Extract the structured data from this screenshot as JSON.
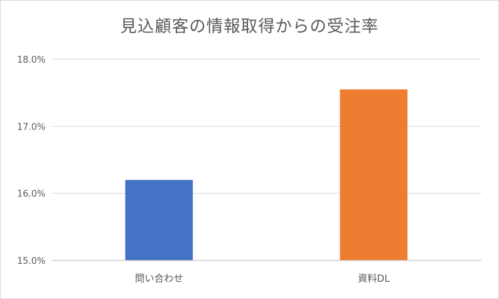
{
  "chart_data": {
    "type": "bar",
    "title": "見込顧客の情報取得からの受注率",
    "xlabel": "",
    "ylabel": "",
    "categories": [
      "問い合わせ",
      "資料DL"
    ],
    "values": [
      16.2,
      17.55
    ],
    "value_format": "percent_1dp",
    "ylim": [
      15.0,
      18.0
    ],
    "yticks": [
      "15.0%",
      "16.0%",
      "17.0%",
      "18.0%"
    ],
    "grid": true,
    "legend": "none",
    "colors": [
      "#4472c4",
      "#ed7d31"
    ],
    "gridline_color": "#d9d9d9",
    "axis_color": "#bfbfbf"
  }
}
